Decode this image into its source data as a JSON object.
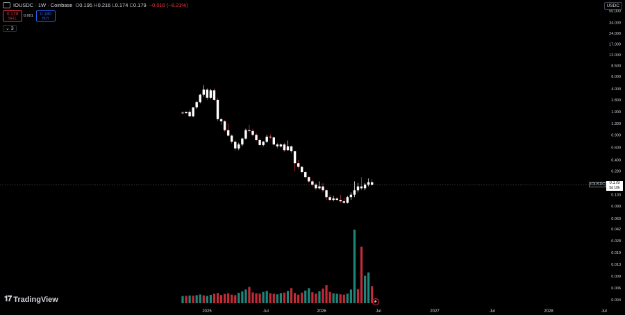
{
  "header": {
    "symbol": "IOUSDC · 1W · Coinbase",
    "open_label": "O",
    "open": "0.195",
    "high_label": "H",
    "high": "0.216",
    "low_label": "L",
    "low": "0.174",
    "close_label": "C",
    "close": "0.179",
    "change": "−0.016 (−8.21%)"
  },
  "trade": {
    "sell_price": "0.179",
    "sell_label": "SELL",
    "spread": "0.001",
    "buy_price": "0.180",
    "buy_label": "BUY"
  },
  "indicator_badge": "⌄ 3",
  "currency_button": "USDC",
  "branding": "TradingView",
  "price_label": {
    "symbol": "IOUSDC",
    "price": "0.179",
    "countdown": "5d 10h"
  },
  "colors": {
    "up": "#26a69a",
    "down": "#f23645",
    "candle_up": "#ffffff",
    "candle_down": "#ffffff",
    "background": "#000000",
    "text": "#d1d4dc"
  },
  "chart_data": {
    "type": "candlestick",
    "price_scale": "log",
    "y_ticks": [
      "50.000",
      "34.000",
      "24.000",
      "17.000",
      "12.000",
      "8.500",
      "6.000",
      "4.000",
      "2.800",
      "1.900",
      "1.300",
      "0.900",
      "0.600",
      "0.400",
      "0.280",
      "0.130",
      "0.090",
      "0.060"
    ],
    "volume_ticks": [
      "0.042",
      "0.028",
      "0.019",
      "0.013",
      "0.009",
      "0.006",
      "0.004"
    ],
    "x_ticks": [
      "2025",
      "Jul",
      "2026",
      "Jul",
      "2027",
      "Jul",
      "2028",
      "Jul"
    ],
    "volume_scale_max": 0.045,
    "candles": [
      {
        "o": 1.85,
        "h": 1.95,
        "l": 1.78,
        "c": 1.82
      },
      {
        "o": 1.82,
        "h": 1.9,
        "l": 1.8,
        "c": 1.9
      },
      {
        "o": 1.9,
        "h": 2.05,
        "l": 1.6,
        "c": 1.65
      },
      {
        "o": 1.65,
        "h": 2.2,
        "l": 1.6,
        "c": 2.2
      },
      {
        "o": 2.2,
        "h": 2.7,
        "l": 2.1,
        "c": 2.6
      },
      {
        "o": 2.6,
        "h": 3.4,
        "l": 2.5,
        "c": 3.3
      },
      {
        "o": 3.3,
        "h": 4.5,
        "l": 3.1,
        "c": 3.9
      },
      {
        "o": 3.9,
        "h": 4.1,
        "l": 2.8,
        "c": 3.0
      },
      {
        "o": 3.0,
        "h": 4.0,
        "l": 2.9,
        "c": 3.8
      },
      {
        "o": 3.8,
        "h": 4.05,
        "l": 2.7,
        "c": 2.8
      },
      {
        "o": 2.8,
        "h": 2.95,
        "l": 1.4,
        "c": 1.5
      },
      {
        "o": 1.5,
        "h": 1.55,
        "l": 1.25,
        "c": 1.4
      },
      {
        "o": 1.4,
        "h": 1.45,
        "l": 1.0,
        "c": 1.05
      },
      {
        "o": 1.05,
        "h": 1.3,
        "l": 0.85,
        "c": 0.88
      },
      {
        "o": 0.88,
        "h": 0.92,
        "l": 0.68,
        "c": 0.72
      },
      {
        "o": 0.72,
        "h": 0.76,
        "l": 0.54,
        "c": 0.58
      },
      {
        "o": 0.58,
        "h": 0.7,
        "l": 0.55,
        "c": 0.66
      },
      {
        "o": 0.66,
        "h": 0.82,
        "l": 0.62,
        "c": 0.8
      },
      {
        "o": 0.8,
        "h": 1.1,
        "l": 0.78,
        "c": 1.05
      },
      {
        "o": 1.05,
        "h": 1.25,
        "l": 0.98,
        "c": 1.02
      },
      {
        "o": 1.02,
        "h": 1.1,
        "l": 0.86,
        "c": 0.9
      },
      {
        "o": 0.9,
        "h": 0.95,
        "l": 0.74,
        "c": 0.76
      },
      {
        "o": 0.76,
        "h": 0.8,
        "l": 0.62,
        "c": 0.65
      },
      {
        "o": 0.65,
        "h": 0.74,
        "l": 0.62,
        "c": 0.72
      },
      {
        "o": 0.72,
        "h": 0.9,
        "l": 0.7,
        "c": 0.85
      },
      {
        "o": 0.85,
        "h": 0.92,
        "l": 0.8,
        "c": 0.83
      },
      {
        "o": 0.83,
        "h": 0.85,
        "l": 0.64,
        "c": 0.66
      },
      {
        "o": 0.66,
        "h": 0.7,
        "l": 0.58,
        "c": 0.62
      },
      {
        "o": 0.62,
        "h": 0.68,
        "l": 0.6,
        "c": 0.66
      },
      {
        "o": 0.66,
        "h": 0.7,
        "l": 0.52,
        "c": 0.55
      },
      {
        "o": 0.55,
        "h": 0.75,
        "l": 0.54,
        "c": 0.62
      },
      {
        "o": 0.62,
        "h": 0.64,
        "l": 0.5,
        "c": 0.53
      },
      {
        "o": 0.53,
        "h": 0.54,
        "l": 0.28,
        "c": 0.36
      },
      {
        "o": 0.36,
        "h": 0.4,
        "l": 0.3,
        "c": 0.32
      },
      {
        "o": 0.32,
        "h": 0.33,
        "l": 0.26,
        "c": 0.27
      },
      {
        "o": 0.27,
        "h": 0.28,
        "l": 0.22,
        "c": 0.23
      },
      {
        "o": 0.23,
        "h": 0.24,
        "l": 0.19,
        "c": 0.2
      },
      {
        "o": 0.2,
        "h": 0.21,
        "l": 0.17,
        "c": 0.18
      },
      {
        "o": 0.18,
        "h": 0.19,
        "l": 0.15,
        "c": 0.16
      },
      {
        "o": 0.16,
        "h": 0.2,
        "l": 0.155,
        "c": 0.17
      },
      {
        "o": 0.17,
        "h": 0.19,
        "l": 0.14,
        "c": 0.15
      },
      {
        "o": 0.15,
        "h": 0.155,
        "l": 0.11,
        "c": 0.12
      },
      {
        "o": 0.12,
        "h": 0.13,
        "l": 0.105,
        "c": 0.11
      },
      {
        "o": 0.11,
        "h": 0.125,
        "l": 0.105,
        "c": 0.115
      },
      {
        "o": 0.115,
        "h": 0.12,
        "l": 0.105,
        "c": 0.11
      },
      {
        "o": 0.11,
        "h": 0.13,
        "l": 0.1,
        "c": 0.105
      },
      {
        "o": 0.105,
        "h": 0.115,
        "l": 0.098,
        "c": 0.1
      },
      {
        "o": 0.1,
        "h": 0.125,
        "l": 0.098,
        "c": 0.12
      },
      {
        "o": 0.12,
        "h": 0.14,
        "l": 0.11,
        "c": 0.13
      },
      {
        "o": 0.13,
        "h": 0.2,
        "l": 0.12,
        "c": 0.15
      },
      {
        "o": 0.15,
        "h": 0.19,
        "l": 0.14,
        "c": 0.17
      },
      {
        "o": 0.17,
        "h": 0.23,
        "l": 0.15,
        "c": 0.16
      },
      {
        "o": 0.16,
        "h": 0.19,
        "l": 0.15,
        "c": 0.18
      },
      {
        "o": 0.18,
        "h": 0.22,
        "l": 0.17,
        "c": 0.195
      },
      {
        "o": 0.195,
        "h": 0.216,
        "l": 0.174,
        "c": 0.179
      }
    ],
    "volumes": [
      {
        "v": 0.0042,
        "up": true
      },
      {
        "v": 0.0043,
        "up": false
      },
      {
        "v": 0.0045,
        "up": true
      },
      {
        "v": 0.0044,
        "up": false
      },
      {
        "v": 0.0047,
        "up": true
      },
      {
        "v": 0.0051,
        "up": true
      },
      {
        "v": 0.0046,
        "up": false
      },
      {
        "v": 0.0043,
        "up": true
      },
      {
        "v": 0.0049,
        "up": true
      },
      {
        "v": 0.0056,
        "up": false
      },
      {
        "v": 0.006,
        "up": false
      },
      {
        "v": 0.0048,
        "up": false
      },
      {
        "v": 0.0054,
        "up": false
      },
      {
        "v": 0.0058,
        "up": false
      },
      {
        "v": 0.005,
        "up": false
      },
      {
        "v": 0.0047,
        "up": false
      },
      {
        "v": 0.0061,
        "up": true
      },
      {
        "v": 0.0069,
        "up": true
      },
      {
        "v": 0.008,
        "up": true
      },
      {
        "v": 0.0095,
        "up": false
      },
      {
        "v": 0.0063,
        "up": false
      },
      {
        "v": 0.0058,
        "up": false
      },
      {
        "v": 0.0056,
        "up": false
      },
      {
        "v": 0.0066,
        "up": true
      },
      {
        "v": 0.0072,
        "up": true
      },
      {
        "v": 0.0058,
        "up": false
      },
      {
        "v": 0.0055,
        "up": false
      },
      {
        "v": 0.0052,
        "up": true
      },
      {
        "v": 0.0059,
        "up": true
      },
      {
        "v": 0.0062,
        "up": false
      },
      {
        "v": 0.0072,
        "up": true
      },
      {
        "v": 0.0088,
        "up": false
      },
      {
        "v": 0.006,
        "up": false
      },
      {
        "v": 0.005,
        "up": false
      },
      {
        "v": 0.0062,
        "up": false
      },
      {
        "v": 0.0074,
        "up": true
      },
      {
        "v": 0.0088,
        "up": true
      },
      {
        "v": 0.0064,
        "up": false
      },
      {
        "v": 0.0056,
        "up": false
      },
      {
        "v": 0.007,
        "up": true
      },
      {
        "v": 0.0086,
        "up": false
      },
      {
        "v": 0.0105,
        "up": false
      },
      {
        "v": 0.0066,
        "up": false
      },
      {
        "v": 0.0058,
        "up": true
      },
      {
        "v": 0.0055,
        "up": true
      },
      {
        "v": 0.0052,
        "up": false
      },
      {
        "v": 0.005,
        "up": false
      },
      {
        "v": 0.0056,
        "up": true
      },
      {
        "v": 0.008,
        "up": true
      },
      {
        "v": 0.043,
        "up": true
      },
      {
        "v": 0.0082,
        "up": false
      },
      {
        "v": 0.033,
        "up": false
      },
      {
        "v": 0.016,
        "up": true
      },
      {
        "v": 0.018,
        "up": true
      },
      {
        "v": 0.01,
        "up": false
      }
    ]
  }
}
